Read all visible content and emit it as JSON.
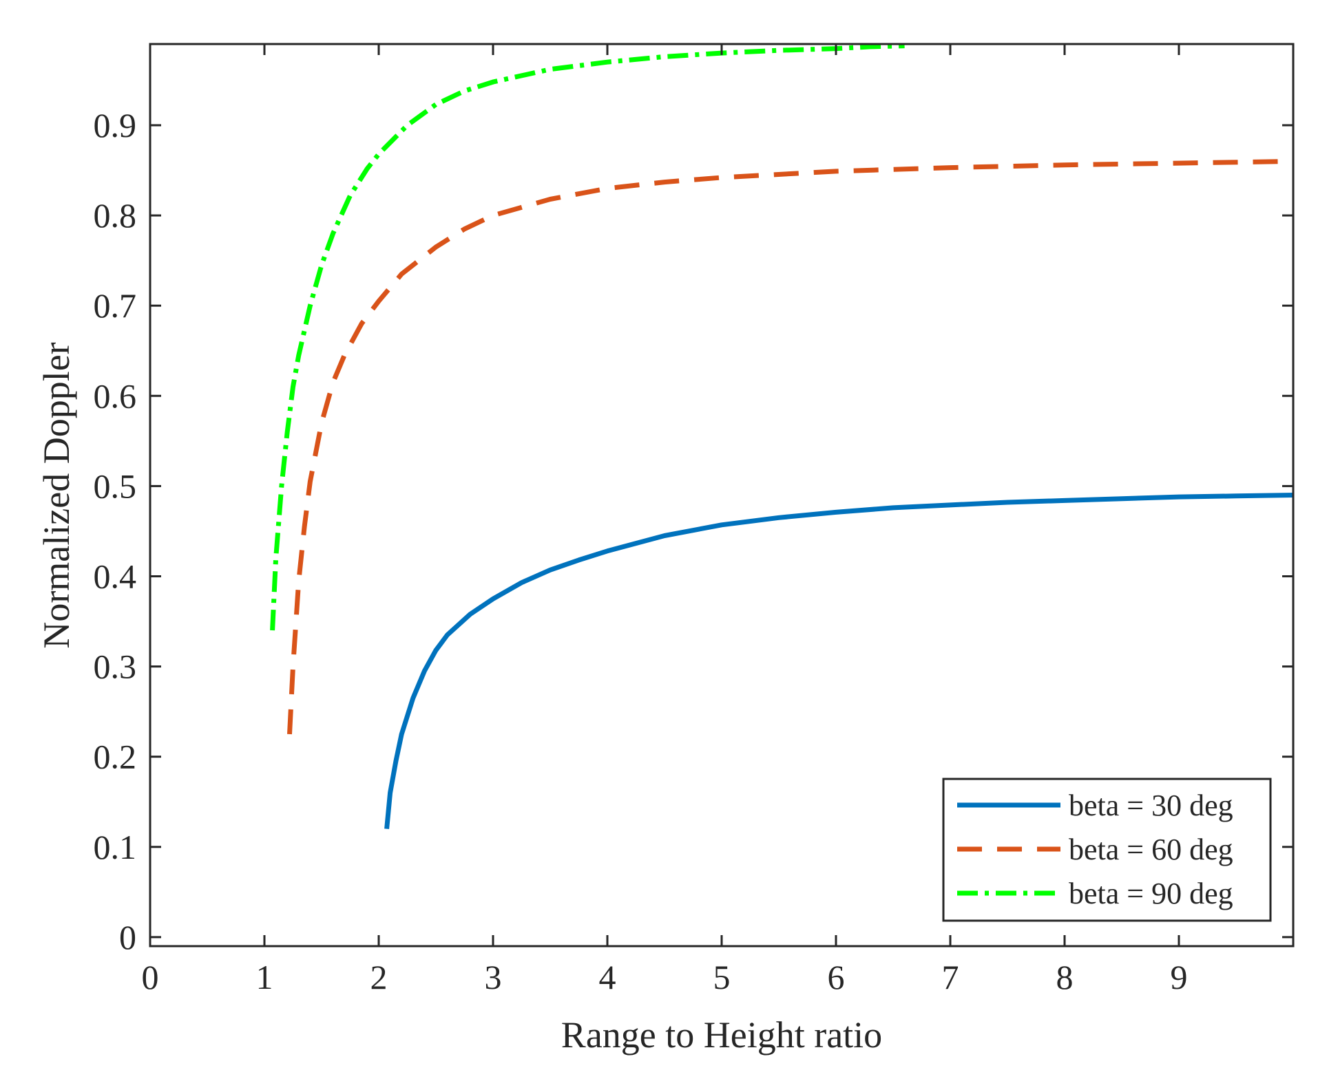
{
  "chart_data": {
    "type": "line",
    "title": "",
    "xlabel": "Range to Height ratio",
    "ylabel": "Normalized Doppler",
    "xlim": [
      0,
      10
    ],
    "ylim": [
      -0.01,
      0.99
    ],
    "xticks": [
      0,
      1,
      2,
      3,
      4,
      5,
      6,
      7,
      8,
      9
    ],
    "xtick_labels": [
      "0",
      "1",
      "2",
      "3",
      "4",
      "5",
      "6",
      "7",
      "8",
      "9"
    ],
    "yticks": [
      0,
      0.1,
      0.2,
      0.3,
      0.4,
      0.5,
      0.6,
      0.7,
      0.8,
      0.9
    ],
    "ytick_labels": [
      "0",
      "0.1",
      "0.2",
      "0.3",
      "0.4",
      "0.5",
      "0.6",
      "0.7",
      "0.8",
      "0.9"
    ],
    "grid": false,
    "legend_position": "bottom-right",
    "series": [
      {
        "name": "beta = 30 deg",
        "color": "#0072BD",
        "style": "solid",
        "x": [
          2.07,
          2.1,
          2.15,
          2.2,
          2.3,
          2.4,
          2.5,
          2.6,
          2.8,
          3.0,
          3.25,
          3.5,
          3.75,
          4.0,
          4.5,
          5.0,
          5.5,
          6.0,
          6.5,
          7.0,
          7.5,
          8.0,
          8.5,
          9.0,
          9.5,
          10.0
        ],
        "y": [
          0.12,
          0.16,
          0.195,
          0.225,
          0.265,
          0.295,
          0.318,
          0.335,
          0.358,
          0.375,
          0.393,
          0.407,
          0.418,
          0.428,
          0.445,
          0.457,
          0.465,
          0.471,
          0.476,
          0.479,
          0.482,
          0.484,
          0.486,
          0.488,
          0.489,
          0.49
        ]
      },
      {
        "name": "beta = 60 deg",
        "color": "#D95319",
        "style": "dashed",
        "x": [
          1.22,
          1.25,
          1.3,
          1.35,
          1.4,
          1.5,
          1.6,
          1.7,
          1.85,
          2.0,
          2.2,
          2.5,
          2.75,
          3.0,
          3.5,
          4.0,
          4.5,
          5.0,
          6.0,
          7.0,
          8.0,
          9.0,
          10.0
        ],
        "y": [
          0.225,
          0.3,
          0.395,
          0.455,
          0.505,
          0.57,
          0.615,
          0.645,
          0.68,
          0.705,
          0.735,
          0.765,
          0.785,
          0.8,
          0.818,
          0.83,
          0.837,
          0.842,
          0.849,
          0.853,
          0.856,
          0.858,
          0.86
        ]
      },
      {
        "name": "beta = 90 deg",
        "color": "#00FF00",
        "style": "dash-dot",
        "x": [
          1.07,
          1.1,
          1.15,
          1.2,
          1.25,
          1.3,
          1.4,
          1.5,
          1.6,
          1.75,
          1.9,
          2.0,
          2.25,
          2.5,
          2.75,
          3.0,
          3.5,
          4.0,
          4.5,
          5.0,
          5.5,
          6.0,
          6.3,
          6.6
        ],
        "y": [
          0.34,
          0.42,
          0.5,
          0.56,
          0.61,
          0.645,
          0.7,
          0.745,
          0.78,
          0.822,
          0.852,
          0.868,
          0.9,
          0.923,
          0.938,
          0.948,
          0.962,
          0.97,
          0.976,
          0.98,
          0.983,
          0.985,
          0.987,
          0.988
        ]
      }
    ]
  }
}
